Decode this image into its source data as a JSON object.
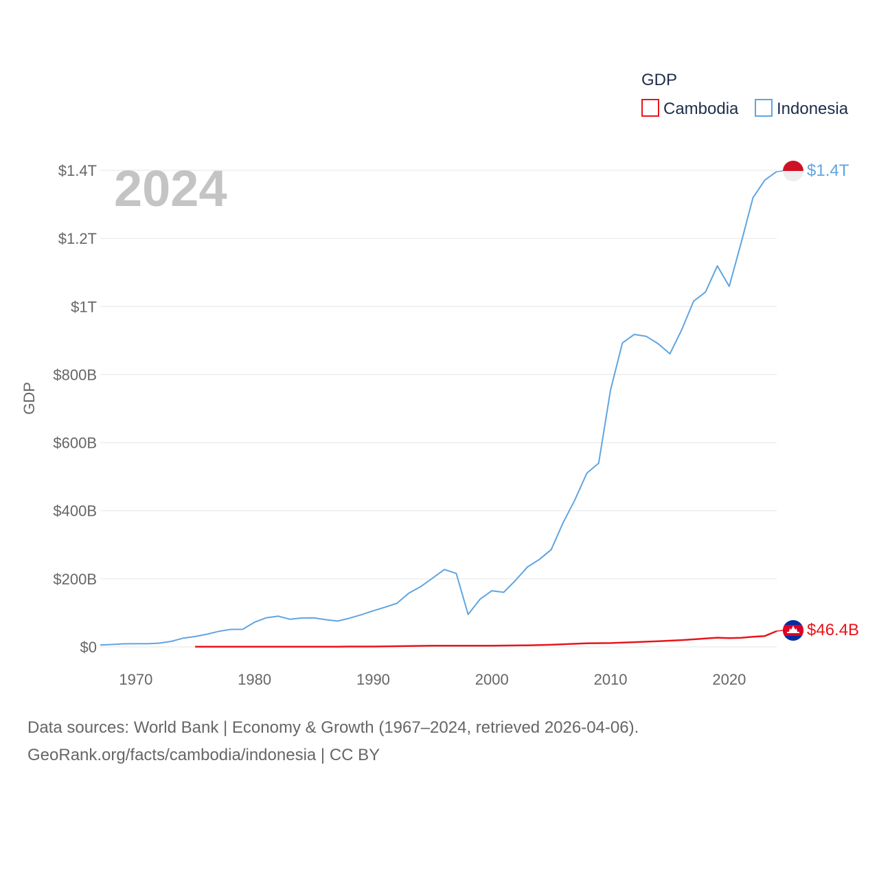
{
  "chart_data": {
    "type": "line",
    "current_year": "2024",
    "ylabel": "GDP",
    "ylim": [
      0,
      1400000000000
    ],
    "xlim": [
      1967,
      2024
    ],
    "y_ticks": [
      {
        "value": 0,
        "label": "$0"
      },
      {
        "value": 200000000000,
        "label": "$200B"
      },
      {
        "value": 400000000000,
        "label": "$400B"
      },
      {
        "value": 600000000000,
        "label": "$600B"
      },
      {
        "value": 800000000000,
        "label": "$800B"
      },
      {
        "value": 1000000000000,
        "label": "$1T"
      },
      {
        "value": 1200000000000,
        "label": "$1.2T"
      },
      {
        "value": 1400000000000,
        "label": "$1.4T"
      }
    ],
    "x_ticks": [
      1970,
      1980,
      1990,
      2000,
      2010,
      2020
    ],
    "legend": {
      "title": "GDP",
      "position": "top-right"
    },
    "series": [
      {
        "name": "Cambodia",
        "color": "#e8141b",
        "end_label": "$46.4B",
        "flag": "cambodia-flag",
        "points": [
          [
            1975,
            0.6
          ],
          [
            1980,
            0.5
          ],
          [
            1987,
            0.6
          ],
          [
            1988,
            1.0
          ],
          [
            1990,
            1.0
          ],
          [
            1993,
            2.5
          ],
          [
            1995,
            3.4
          ],
          [
            2000,
            3.7
          ],
          [
            2003,
            4.6
          ],
          [
            2005,
            6.3
          ],
          [
            2008,
            10.4
          ],
          [
            2010,
            11.2
          ],
          [
            2012,
            14.0
          ],
          [
            2014,
            16.7
          ],
          [
            2016,
            20.0
          ],
          [
            2017,
            22.2
          ],
          [
            2018,
            24.6
          ],
          [
            2019,
            27.1
          ],
          [
            2020,
            25.9
          ],
          [
            2021,
            26.9
          ],
          [
            2022,
            29.6
          ],
          [
            2023,
            31.8
          ],
          [
            2024,
            46.4
          ]
        ]
      },
      {
        "name": "Indonesia",
        "color": "#5fa4e0",
        "end_label": "$1.4T",
        "flag": "indonesia-flag",
        "points": [
          [
            1967,
            5.7
          ],
          [
            1968,
            7.1
          ],
          [
            1969,
            9.0
          ],
          [
            1970,
            9.2
          ],
          [
            1971,
            9.3
          ],
          [
            1972,
            11.0
          ],
          [
            1973,
            16.3
          ],
          [
            1974,
            25.8
          ],
          [
            1975,
            30.5
          ],
          [
            1976,
            37.3
          ],
          [
            1977,
            45.8
          ],
          [
            1978,
            51.4
          ],
          [
            1979,
            51.7
          ],
          [
            1980,
            72.5
          ],
          [
            1981,
            85.5
          ],
          [
            1982,
            90.2
          ],
          [
            1983,
            81.1
          ],
          [
            1984,
            84.9
          ],
          [
            1985,
            85.3
          ],
          [
            1986,
            79.9
          ],
          [
            1987,
            75.9
          ],
          [
            1988,
            84.3
          ],
          [
            1989,
            94.5
          ],
          [
            1990,
            106.1
          ],
          [
            1991,
            116.6
          ],
          [
            1992,
            128.0
          ],
          [
            1993,
            158.0
          ],
          [
            1994,
            176.9
          ],
          [
            1995,
            202.1
          ],
          [
            1996,
            227.4
          ],
          [
            1997,
            215.7
          ],
          [
            1998,
            95.4
          ],
          [
            1999,
            140.0
          ],
          [
            2000,
            165.0
          ],
          [
            2001,
            160.4
          ],
          [
            2002,
            195.7
          ],
          [
            2003,
            234.8
          ],
          [
            2004,
            256.8
          ],
          [
            2005,
            285.9
          ],
          [
            2006,
            364.6
          ],
          [
            2007,
            432.2
          ],
          [
            2008,
            510.2
          ],
          [
            2009,
            539.6
          ],
          [
            2010,
            755.1
          ],
          [
            2011,
            892.97
          ],
          [
            2012,
            917.9
          ],
          [
            2013,
            912.5
          ],
          [
            2014,
            890.8
          ],
          [
            2015,
            860.9
          ],
          [
            2016,
            931.9
          ],
          [
            2017,
            1015.6
          ],
          [
            2018,
            1042.3
          ],
          [
            2019,
            1119.1
          ],
          [
            2020,
            1059.1
          ],
          [
            2021,
            1186.5
          ],
          [
            2022,
            1319.1
          ],
          [
            2023,
            1371.2
          ],
          [
            2024,
            1396.3
          ]
        ]
      }
    ]
  },
  "footer": {
    "line1": "Data sources: World Bank | Economy & Growth (1967–2024, retrieved 2026-04-06).",
    "line2": "GeoRank.org/facts/cambodia/indonesia | CC BY"
  }
}
